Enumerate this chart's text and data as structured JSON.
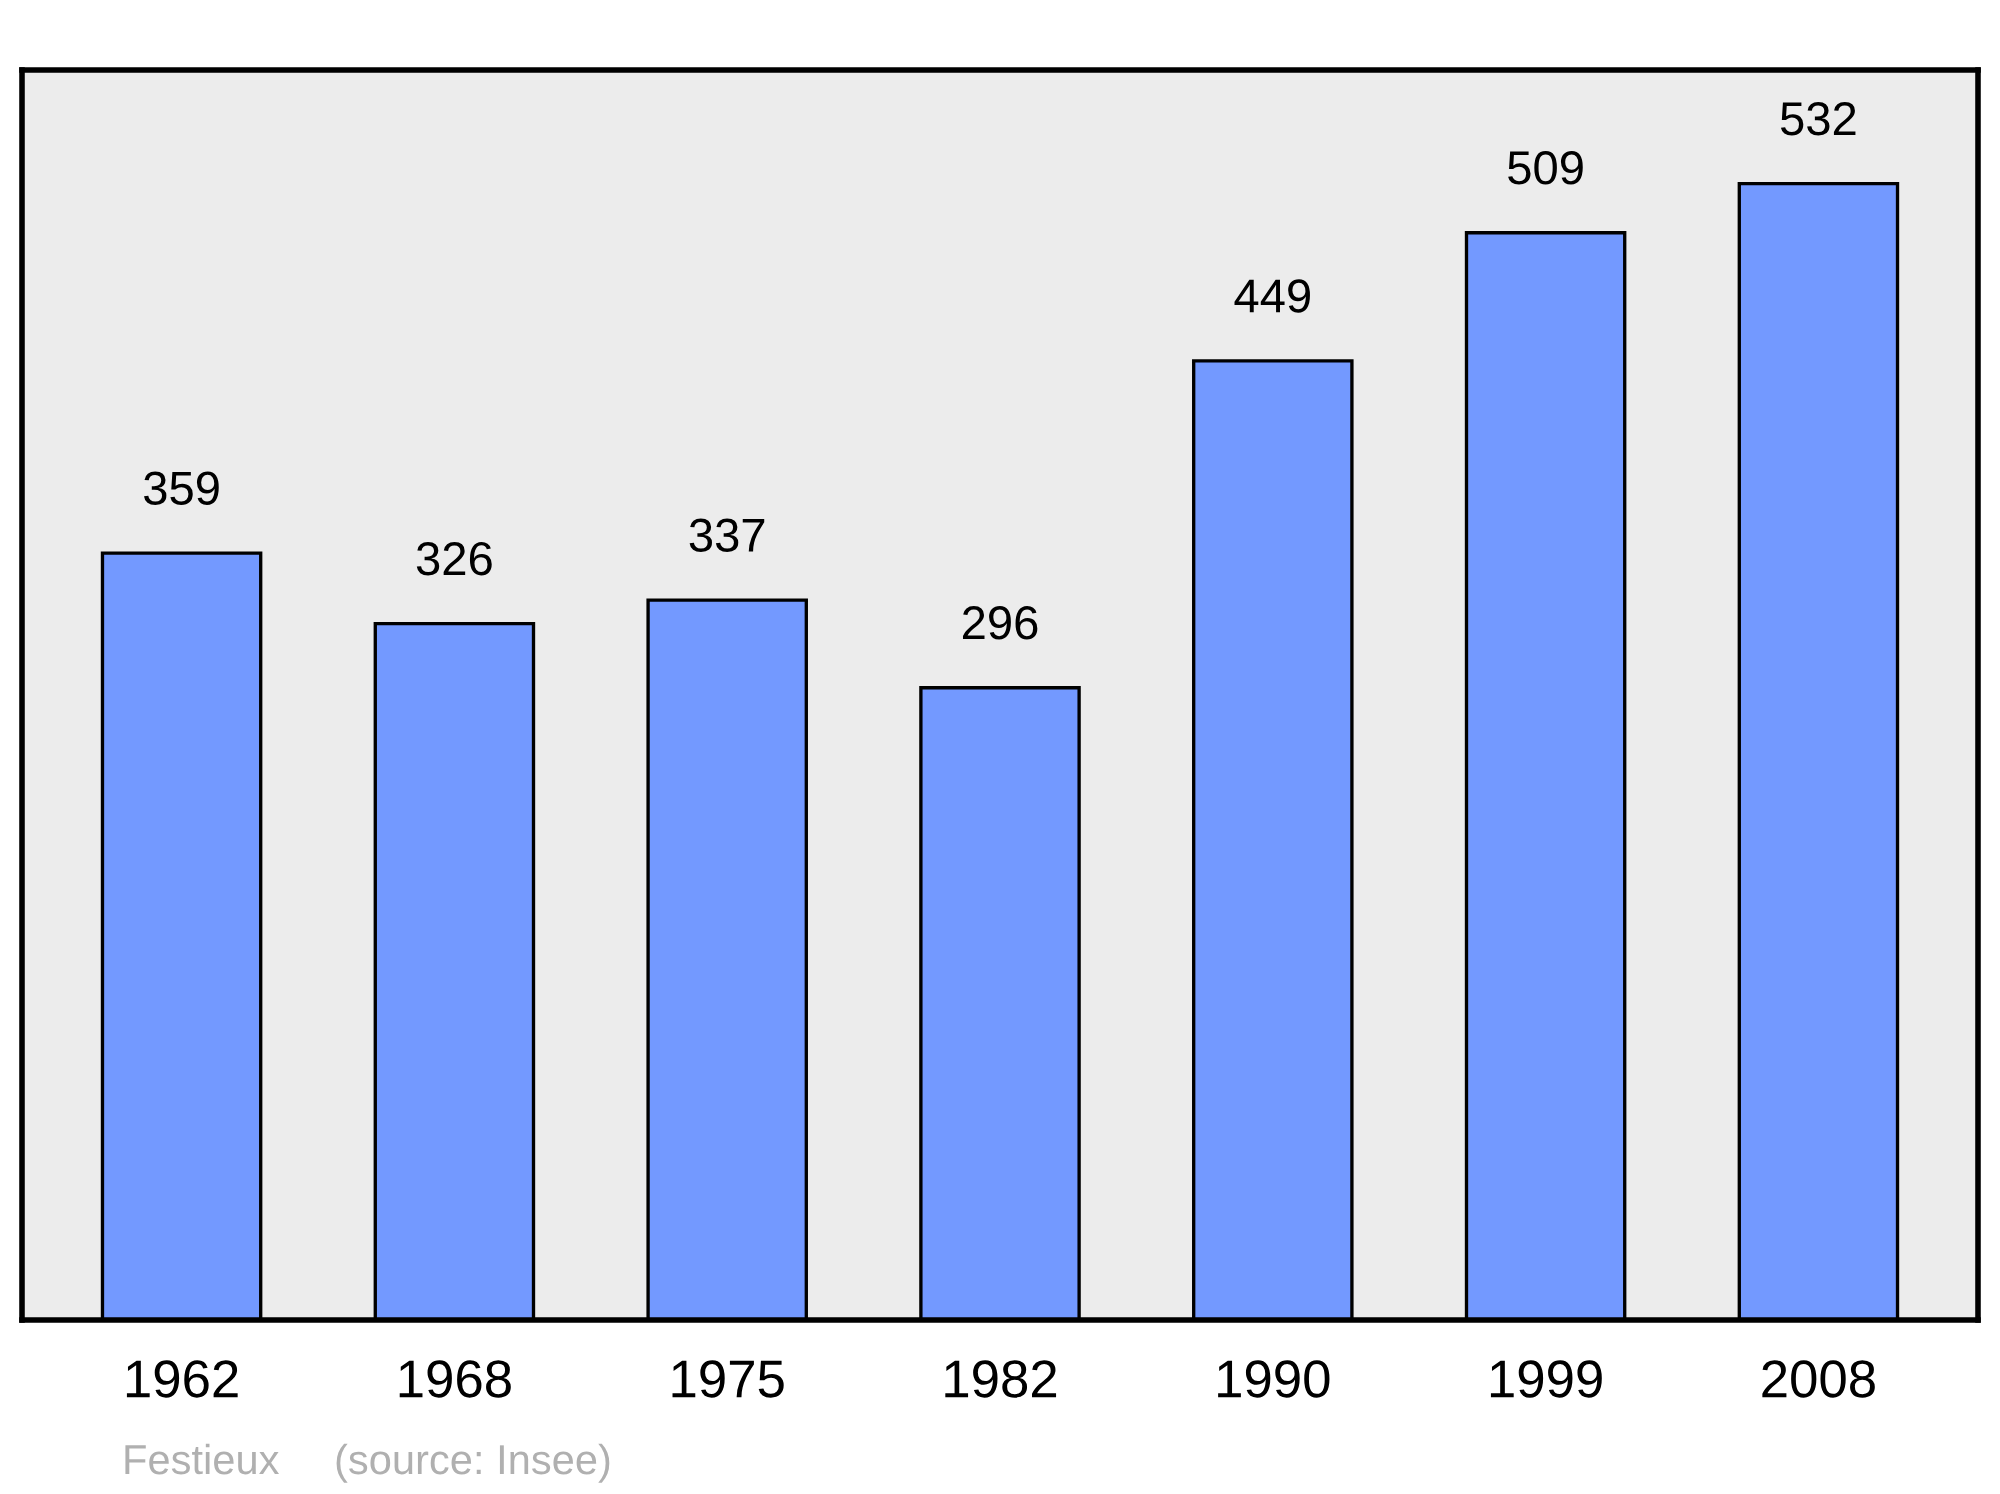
{
  "chart_data": {
    "type": "bar",
    "categories": [
      "1962",
      "1968",
      "1975",
      "1982",
      "1990",
      "1999",
      "2008"
    ],
    "values": [
      359,
      326,
      337,
      296,
      449,
      509,
      532
    ],
    "color": "#7399ff",
    "data_labels": true,
    "tick_labels": "x",
    "annotations": [
      "Festieux",
      "(source: Insee)"
    ]
  }
}
